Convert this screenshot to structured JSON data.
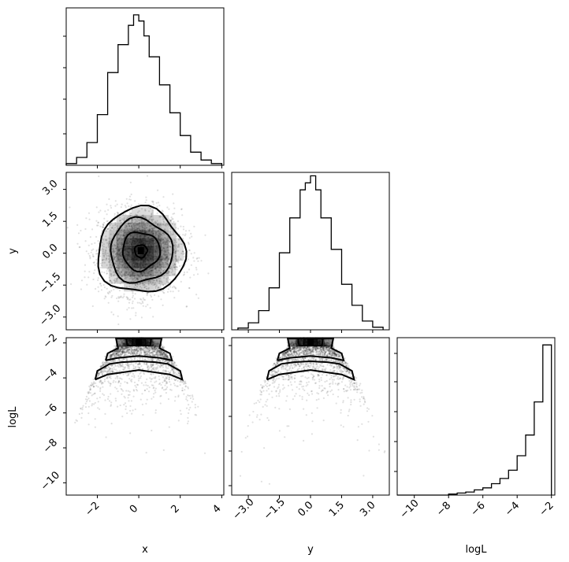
{
  "chart_data": {
    "type": "corner",
    "parameters": [
      "x",
      "y",
      "logL"
    ],
    "panels": [
      {
        "id": "hist-x",
        "type": "histogram",
        "parameter": "x",
        "xlim": [
          -3.5,
          4.1
        ],
        "bin_edges": [
          -3.5,
          -3.0,
          -2.5,
          -2.0,
          -1.5,
          -1.0,
          -0.5,
          -0.25,
          0.0,
          0.25,
          0.5,
          1.0,
          1.5,
          2.0,
          2.5,
          3.0,
          3.5,
          4.0
        ],
        "counts": [
          2,
          9,
          26,
          58,
          106,
          138,
          160,
          172,
          165,
          148,
          124,
          92,
          60,
          34,
          15,
          6,
          2
        ],
        "ylim": [
          0,
          180
        ]
      },
      {
        "id": "scatter-x-y",
        "type": "scatter_contour",
        "x_param": "x",
        "y_param": "y",
        "xlim": [
          -3.5,
          4.1
        ],
        "ylim": [
          -3.6,
          3.8
        ],
        "yticks": [
          "−3.0",
          "−1.5",
          "0.0",
          "1.5",
          "3.0"
        ],
        "ytick_values": [
          -3.0,
          -1.5,
          0.0,
          1.5,
          3.0
        ],
        "contour_radii": [
          [
            0.3,
            0.3
          ],
          [
            0.9,
            0.9
          ],
          [
            1.5,
            1.5
          ],
          [
            2.1,
            2.0
          ]
        ],
        "center": [
          0.1,
          0.1
        ],
        "density_peak": [
          0.1,
          0.1
        ]
      },
      {
        "id": "hist-y",
        "type": "histogram",
        "parameter": "y",
        "xlim": [
          -3.8,
          3.8
        ],
        "bin_edges": [
          -3.5,
          -3.0,
          -2.5,
          -2.0,
          -1.5,
          -1.0,
          -0.5,
          -0.25,
          0.0,
          0.25,
          0.5,
          1.0,
          1.5,
          2.0,
          2.5,
          3.0,
          3.5
        ],
        "counts": [
          2,
          8,
          22,
          48,
          88,
          128,
          160,
          168,
          176,
          160,
          128,
          92,
          52,
          28,
          10,
          3
        ],
        "ylim": [
          0,
          180
        ]
      },
      {
        "id": "scatter-x-logL",
        "type": "scatter_contour",
        "x_param": "x",
        "y_param": "logL",
        "xlim": [
          -3.5,
          4.1
        ],
        "ylim": [
          -10.7,
          -1.7
        ],
        "yticks": [
          "−10",
          "−8",
          "−6",
          "−4",
          "−2"
        ],
        "ytick_values": [
          -10,
          -8,
          -6,
          -4,
          -2
        ],
        "xticks": [
          "−2",
          "0",
          "2",
          "4"
        ],
        "xtick_values": [
          -2,
          0,
          2,
          4
        ]
      },
      {
        "id": "scatter-y-logL",
        "type": "scatter_contour",
        "x_param": "y",
        "y_param": "logL",
        "xlim": [
          -3.8,
          3.8
        ],
        "ylim": [
          -10.7,
          -1.7
        ],
        "xticks": [
          "−3.0",
          "−1.5",
          "0.0",
          "1.5",
          "3.0"
        ],
        "xtick_values": [
          -3.0,
          -1.5,
          0.0,
          1.5,
          3.0
        ]
      },
      {
        "id": "hist-logL",
        "type": "histogram",
        "parameter": "logL",
        "xlim": [
          -11,
          -1.8
        ],
        "xticks": [
          "−10",
          "−8",
          "−6",
          "−4",
          "−2"
        ],
        "xtick_values": [
          -10,
          -8,
          -6,
          -4,
          -2
        ],
        "bin_edges": [
          -11.0,
          -10.5,
          -10.0,
          -9.5,
          -9.0,
          -8.5,
          -8.0,
          -7.5,
          -7.0,
          -6.5,
          -6.0,
          -5.5,
          -5.0,
          -4.5,
          -4.0,
          -3.5,
          -3.0,
          -2.5,
          -2.0
        ],
        "counts": [
          0,
          0,
          0,
          0,
          0,
          0,
          1,
          2,
          3,
          5,
          7,
          11,
          16,
          24,
          38,
          58,
          90,
          145
        ],
        "ylim": [
          0,
          152
        ]
      }
    ],
    "xlabels": [
      "x",
      "y",
      "logL"
    ],
    "ylabels": [
      "y",
      "logL"
    ],
    "grid": false
  }
}
